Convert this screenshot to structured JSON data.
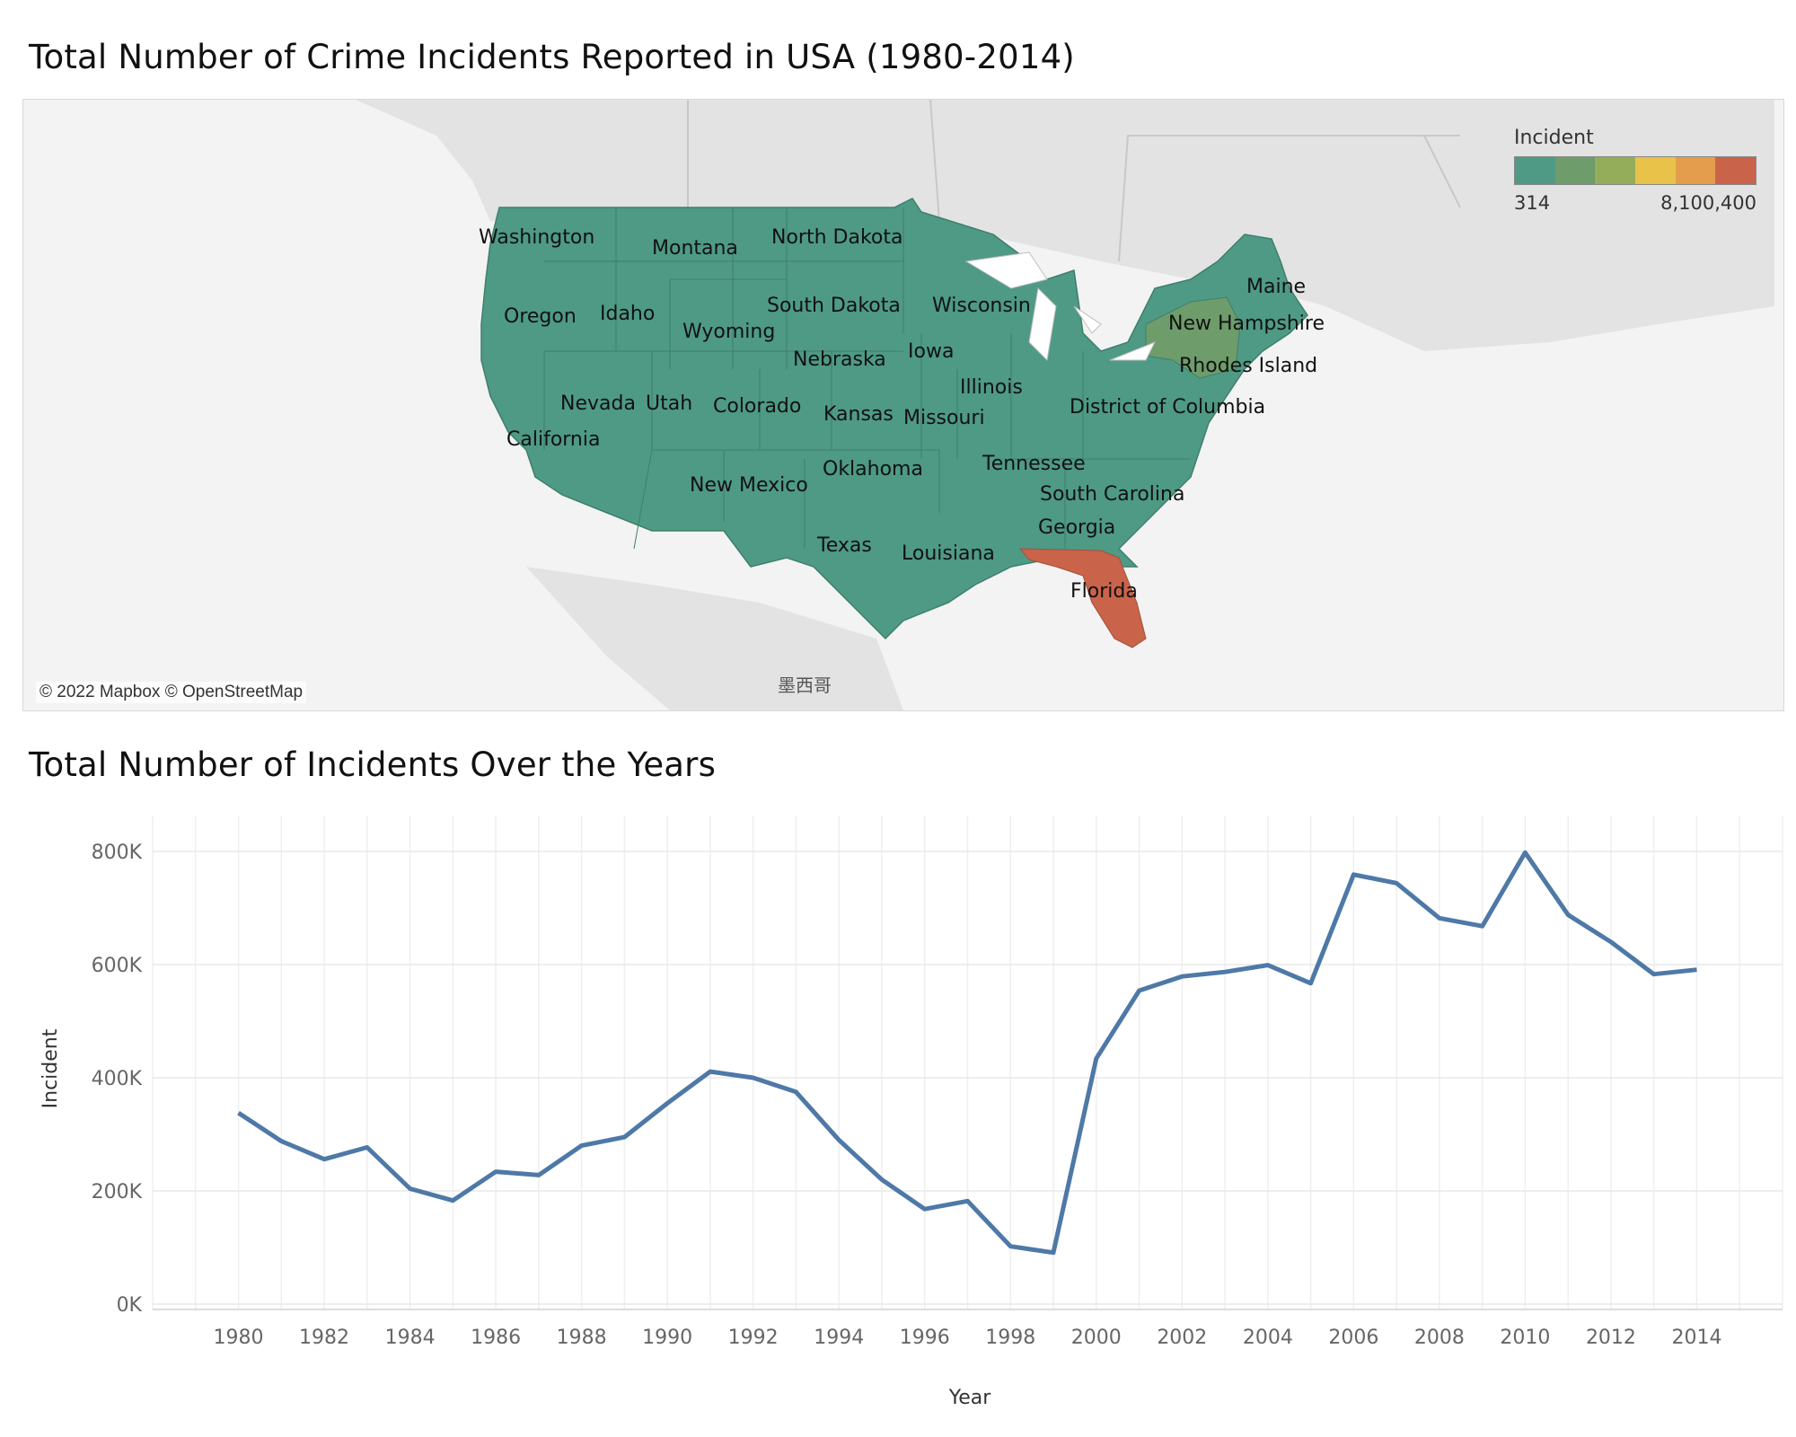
{
  "map": {
    "title": "Total Number of Crime Incidents Reported in USA (1980-2014)",
    "legend": {
      "title": "Incident",
      "min_label": "314",
      "max_label": "8,100,400",
      "colors": [
        "#4e9a85",
        "#6e9c6a",
        "#93ad5a",
        "#e9c24a",
        "#e39d4d",
        "#c9634a"
      ]
    },
    "attribution": "© 2022 Mapbox © OpenStreetMap",
    "country_label": "墨西哥",
    "base_color": "#4e9a85",
    "state_labels": [
      "Washington",
      "Montana",
      "North Dakota",
      "Oregon",
      "Idaho",
      "South Dakota",
      "Wisconsin",
      "Wyoming",
      "Maine",
      "New Hampshire",
      "Nebraska",
      "Iowa",
      "Rhodes Island",
      "Illinois",
      "Nevada",
      "Utah",
      "Colorado",
      "District of Columbia",
      "Kansas",
      "Missouri",
      "California",
      "Tennessee",
      "Oklahoma",
      "New Mexico",
      "South Carolina",
      "Georgia",
      "Texas",
      "Louisiana",
      "Florida"
    ],
    "highlighted": [
      {
        "state": "New York",
        "color": "#6e9c6a"
      },
      {
        "state": "Florida",
        "color": "#c9634a"
      }
    ]
  },
  "line": {
    "title": "Total Number of Incidents Over the Years"
  },
  "chart_data": {
    "type": "line",
    "title": "Total Number of Incidents Over the Years",
    "xlabel": "Year",
    "ylabel": "Incident",
    "x": [
      1980,
      1981,
      1982,
      1983,
      1984,
      1985,
      1986,
      1987,
      1988,
      1989,
      1990,
      1991,
      1992,
      1993,
      1994,
      1995,
      1996,
      1997,
      1998,
      1999,
      2000,
      2001,
      2002,
      2003,
      2004,
      2005,
      2006,
      2007,
      2008,
      2009,
      2010,
      2011,
      2012,
      2013,
      2014
    ],
    "series": [
      {
        "values": [
          338000,
          288000,
          256000,
          277000,
          204000,
          183000,
          234000,
          228000,
          280000,
          295000,
          355000,
          411000,
          400000,
          375000,
          290000,
          220000,
          168000,
          182000,
          102000,
          91000,
          434000,
          554000,
          579000,
          587000,
          599000,
          567000,
          759000,
          744000,
          682000,
          668000,
          798000,
          688000,
          640000,
          583000,
          591000
        ]
      }
    ],
    "xticks": [
      "1980",
      "1982",
      "1984",
      "1986",
      "1988",
      "1990",
      "1992",
      "1994",
      "1996",
      "1998",
      "2000",
      "2002",
      "2004",
      "2006",
      "2008",
      "2010",
      "2012",
      "2014"
    ],
    "yticks": [
      "0K",
      "200K",
      "400K",
      "600K",
      "800K"
    ],
    "ylim": [
      0,
      800000
    ],
    "xlim": [
      1978,
      2016
    ],
    "line_color": "#4e79a7",
    "grid": true
  }
}
